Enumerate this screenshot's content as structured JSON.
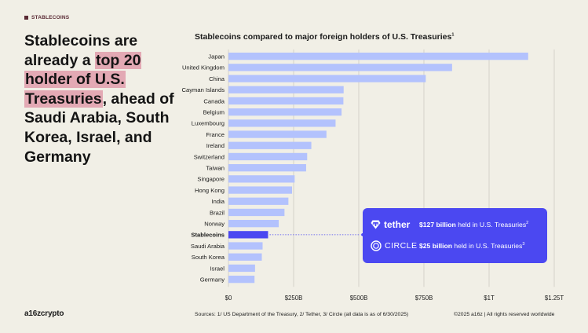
{
  "tag": "STABLECOINS",
  "headline": {
    "part1": "Stablecoins are already a ",
    "highlight": "top 20 holder of U.S. Treasuries",
    "part2": ", ahead of Saudi Arabia, South Korea, Israel, and Germany"
  },
  "colors": {
    "bar": "#b3c2fd",
    "highlight_bar": "#4b48f1",
    "callout_bg": "#4b48f1",
    "headline_highlight": "#e3a9b4",
    "background": "#f1efe6"
  },
  "chart_data": {
    "type": "bar",
    "orientation": "horizontal",
    "title": "Stablecoins compared to major foreign holders of U.S. Treasuries",
    "title_sup": "1",
    "categories": [
      "Japan",
      "United Kingdom",
      "China",
      "Cayman Islands",
      "Canada",
      "Belgium",
      "Luxembourg",
      "France",
      "Ireland",
      "Switzerland",
      "Taiwan",
      "Singapore",
      "Hong Kong",
      "India",
      "Brazil",
      "Norway",
      "Stablecoins",
      "Saudi Arabia",
      "South Korea",
      "Israel",
      "Germany"
    ],
    "values": [
      1150,
      858,
      757,
      442,
      441,
      434,
      411,
      376,
      318,
      302,
      298,
      254,
      244,
      230,
      215,
      193,
      152,
      131,
      128,
      102,
      100
    ],
    "highlight": "Stablecoins",
    "unit": "billion USD",
    "xlim": [
      0,
      1250
    ],
    "xticks": [
      0,
      250,
      500,
      750,
      1000,
      1250
    ],
    "xtick_labels": [
      "$0",
      "$250B",
      "$500B",
      "$750B",
      "$1T",
      "$1.25T"
    ],
    "grid": true
  },
  "callout": {
    "tether": {
      "brand": "tether",
      "amount": "$127 billion",
      "text": "held in U.S. Treasuries",
      "sup": "2"
    },
    "circle": {
      "brand": "CIRCLE",
      "amount": "$25 billion",
      "text": "held in U.S. Treasuries",
      "sup": "3"
    }
  },
  "footer": {
    "logo": "a16zcrypto",
    "sources": "Sources: 1/ US Department of the Treasury, 2/ Tether, 3/ Circle (all data is as of 6/30/2025)",
    "copyright": "©2025 a16z | All rights reserved worldwide"
  }
}
